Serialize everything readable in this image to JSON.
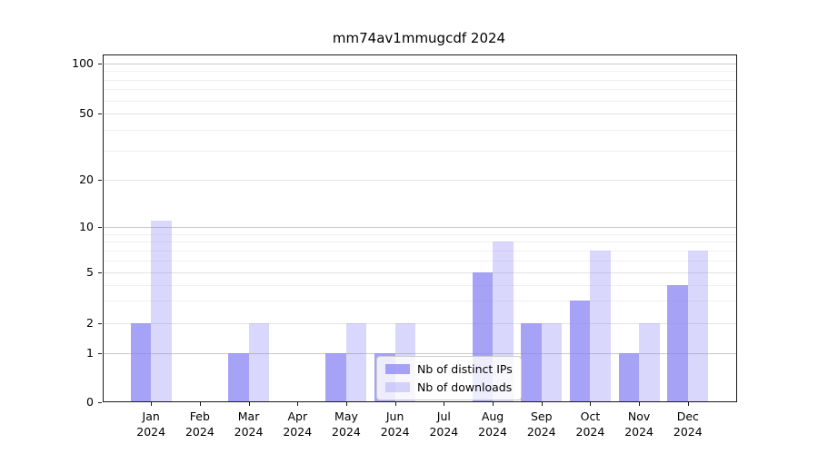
{
  "chart_data": {
    "type": "bar",
    "title": "mm74av1mmugcdf 2024",
    "categories": [
      "Jan",
      "Feb",
      "Mar",
      "Apr",
      "May",
      "Jun",
      "Jul",
      "Aug",
      "Sep",
      "Oct",
      "Nov",
      "Dec"
    ],
    "x_year_label": "2024",
    "series": [
      {
        "name": "Nb of distinct IPs",
        "key": "distinct-ips",
        "color": "#8884f4",
        "alpha": 0.75,
        "values": [
          2,
          0,
          1,
          0,
          1,
          1,
          0,
          5,
          2,
          3,
          1,
          4
        ]
      },
      {
        "name": "Nb of downloads",
        "key": "downloads",
        "color": "#8884f4",
        "alpha": 0.32,
        "values": [
          11,
          0,
          2,
          0,
          2,
          2,
          0,
          8,
          2,
          7,
          2,
          7
        ]
      }
    ],
    "yticks": [
      0,
      1,
      2,
      5,
      10,
      20,
      50,
      100
    ],
    "minor_gridlines": [
      3,
      4,
      6,
      7,
      8,
      9,
      30,
      40,
      60,
      70,
      80,
      90
    ],
    "ylim": [
      0,
      115
    ],
    "yscale": "log-like (linear 0 to 1, log above)",
    "grid": true,
    "legend_position": "lower center inside plot",
    "background_color": "#ffffff",
    "axis_color": "#1a1a1a"
  }
}
